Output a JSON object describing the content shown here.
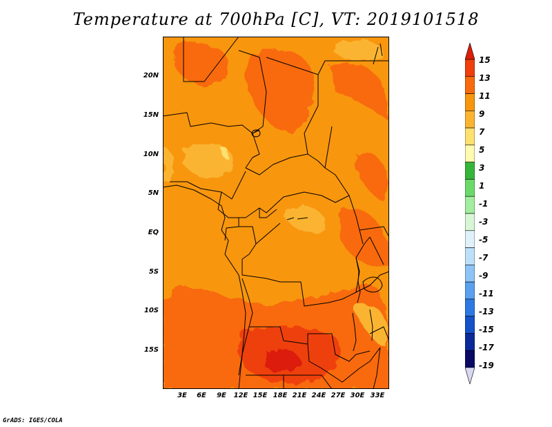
{
  "title": "Temperature at 700hPa [C], VT: 2019101518",
  "credit": "GrADS: IGES/COLA",
  "map": {
    "lat_labels": [
      "20N",
      "15N",
      "10N",
      "5N",
      "EQ",
      "5S",
      "10S",
      "15S"
    ],
    "lon_labels": [
      "3E",
      "6E",
      "9E",
      "12E",
      "15E",
      "18E",
      "21E",
      "24E",
      "27E",
      "30E",
      "33E"
    ]
  },
  "colorbar": {
    "labels": [
      "15",
      "13",
      "11",
      "9",
      "7",
      "5",
      "3",
      "1",
      "-1",
      "-3",
      "-5",
      "-7",
      "-9",
      "-11",
      "-13",
      "-15",
      "-17",
      "-19"
    ],
    "colors": [
      "#dc1e0a",
      "#ee3f0c",
      "#f86a0e",
      "#f8960e",
      "#fbb432",
      "#fde070",
      "#fefab0",
      "#36b53a",
      "#6bd96a",
      "#a2ed9f",
      "#d8f6d6",
      "#dff1fb",
      "#bde0fa",
      "#8ec3f5",
      "#5aa0ee",
      "#2e78e2",
      "#1452c8",
      "#0a2a9a",
      "#0a0a64",
      "#d8d8f4"
    ]
  }
}
